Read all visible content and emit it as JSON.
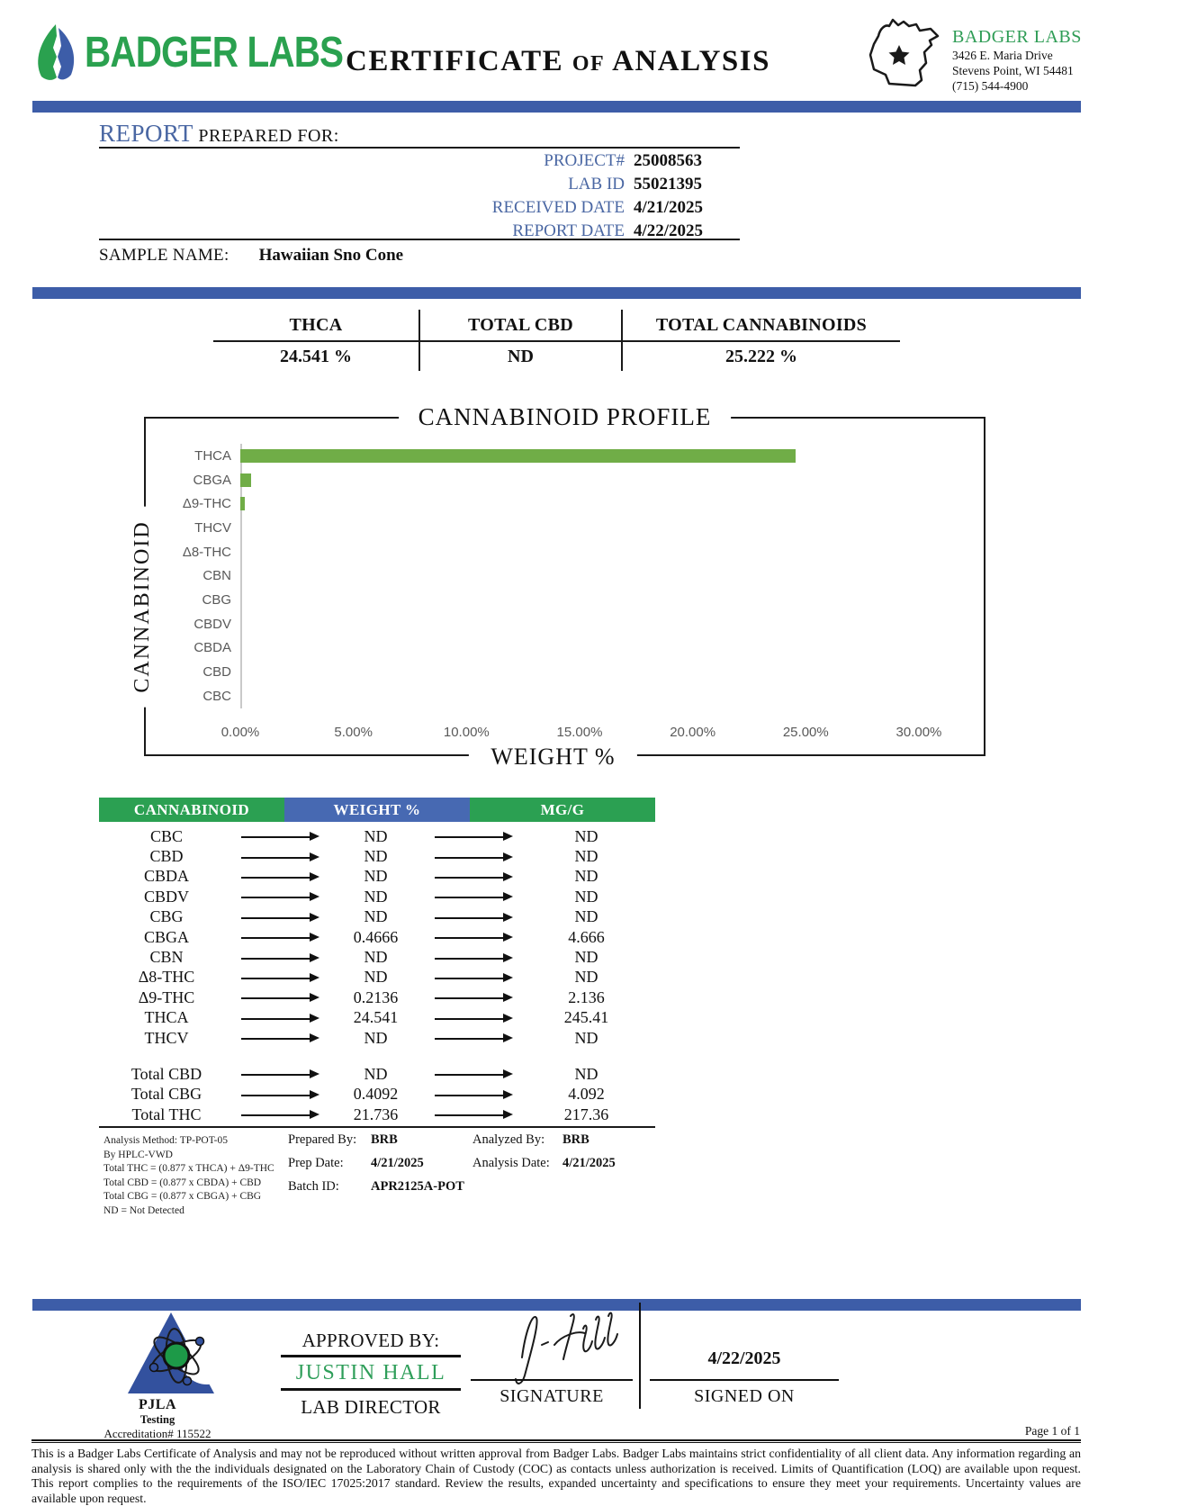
{
  "header": {
    "logo_text": "BADGER LABS",
    "title_word1": "CERTIFICATE",
    "title_of": "OF",
    "title_word2": "ANALYSIS",
    "lab_block": {
      "name": "BADGER LABS",
      "address_line1": "3426 E. Maria Drive",
      "address_line2": "Stevens Point, WI 54481",
      "phone": "(715) 544-4900"
    }
  },
  "report_info": {
    "report_word": "REPORT",
    "prepared_for": "PREPARED FOR:",
    "fields": [
      {
        "label": "PROJECT#",
        "value": "25008563"
      },
      {
        "label": "LAB ID",
        "value": "55021395"
      },
      {
        "label": "RECEIVED DATE",
        "value": "4/21/2025"
      },
      {
        "label": "REPORT DATE",
        "value": "4/22/2025"
      }
    ],
    "sample_name_label": "SAMPLE NAME:",
    "sample_name": "Hawaiian Sno Cone"
  },
  "summary": {
    "columns": [
      {
        "label": "THCA",
        "value": "24.541 %"
      },
      {
        "label": "TOTAL CBD",
        "value": "ND"
      },
      {
        "label": "TOTAL CANNABINOIDS",
        "value": "25.222 %"
      }
    ]
  },
  "chart_data": {
    "type": "bar",
    "orientation": "horizontal",
    "title": "CANNABINOID PROFILE",
    "ylabel": "CANNABINOID",
    "xlabel": "WEIGHT %",
    "categories": [
      "THCA",
      "CBGA",
      "Δ9-THC",
      "THCV",
      "Δ8-THC",
      "CBN",
      "CBG",
      "CBDV",
      "CBDA",
      "CBD",
      "CBC"
    ],
    "values": [
      24.541,
      0.4666,
      0.2136,
      0,
      0,
      0,
      0,
      0,
      0,
      0,
      0
    ],
    "xlim": [
      0,
      30
    ],
    "xticks": [
      "0.00%",
      "5.00%",
      "10.00%",
      "15.00%",
      "20.00%",
      "25.00%",
      "30.00%"
    ],
    "bar_color": "#70AD47",
    "grid": false,
    "legend": false
  },
  "table": {
    "headers": [
      "CANNABINOID",
      "WEIGHT %",
      "MG/G"
    ],
    "rows": [
      {
        "name": "CBC",
        "weight": "ND",
        "mgg": "ND"
      },
      {
        "name": "CBD",
        "weight": "ND",
        "mgg": "ND"
      },
      {
        "name": "CBDA",
        "weight": "ND",
        "mgg": "ND"
      },
      {
        "name": "CBDV",
        "weight": "ND",
        "mgg": "ND"
      },
      {
        "name": "CBG",
        "weight": "ND",
        "mgg": "ND"
      },
      {
        "name": "CBGA",
        "weight": "0.4666",
        "mgg": "4.666"
      },
      {
        "name": "CBN",
        "weight": "ND",
        "mgg": "ND"
      },
      {
        "name": "Δ8-THC",
        "weight": "ND",
        "mgg": "ND"
      },
      {
        "name": "Δ9-THC",
        "weight": "0.2136",
        "mgg": "2.136"
      },
      {
        "name": "THCA",
        "weight": "24.541",
        "mgg": "245.41"
      },
      {
        "name": "THCV",
        "weight": "ND",
        "mgg": "ND"
      }
    ],
    "total_rows": [
      {
        "name": "Total CBD",
        "weight": "ND",
        "mgg": "ND"
      },
      {
        "name": "Total CBG",
        "weight": "0.4092",
        "mgg": "4.092"
      },
      {
        "name": "Total THC",
        "weight": "21.736",
        "mgg": "217.36"
      }
    ]
  },
  "footnotes": {
    "method_lines": [
      "Analysis Method: TP-POT-05",
      "By HPLC-VWD",
      "Total THC = (0.877 x  THCA) + Δ9-THC",
      "Total CBD = (0.877 x  CBDA) + CBD",
      "Total CBG = (0.877 x  CBGA) + CBG",
      "ND = Not Detected"
    ],
    "prepared": [
      {
        "label": "Prepared By:",
        "value": "BRB"
      },
      {
        "label": "Prep Date:",
        "value": "4/21/2025"
      },
      {
        "label": "Batch ID:",
        "value": "APR2125A-POT"
      }
    ],
    "analyzed": [
      {
        "label": "Analyzed By:",
        "value": "BRB"
      },
      {
        "label": "Analysis Date:",
        "value": "4/21/2025"
      }
    ]
  },
  "approval": {
    "accreditation_org": "PJLA",
    "accreditation_sub": "Testing",
    "accreditation_number": "Accreditation# 115522",
    "approved_by_label": "APPROVED BY:",
    "approver_name": "JUSTIN HALL",
    "approver_title": "LAB DIRECTOR",
    "signature_label": "SIGNATURE",
    "signed_on_label": "SIGNED ON",
    "signed_date": "4/22/2025"
  },
  "footer": {
    "page": "Page 1 of 1",
    "disclaimer": "This is a Badger Labs Certificate of Analysis and may not be reproduced without written approval from Badger Labs. Badger Labs maintains strict confidentiality of all client data. Any information regarding an analysis is shared only with the the individuals designated on the Laboratory Chain of Custody (COC) as contacts unless authorization is received. Limits of Quantification (LOQ) are available upon request. This report complies to the requirements of the ISO/IEC 17025:2017 standard. Review the results, expanded uncertainty and specifications to ensure they meet your requirements. Uncertainty values are available upon request."
  },
  "colors": {
    "accent_blue": "#3d5da8",
    "brand_green": "#2aa14f",
    "table_header_green": "#2ba052",
    "table_header_blue": "#4769b2",
    "bar_green": "#70AD47",
    "label_blue": "#4a67a3"
  }
}
